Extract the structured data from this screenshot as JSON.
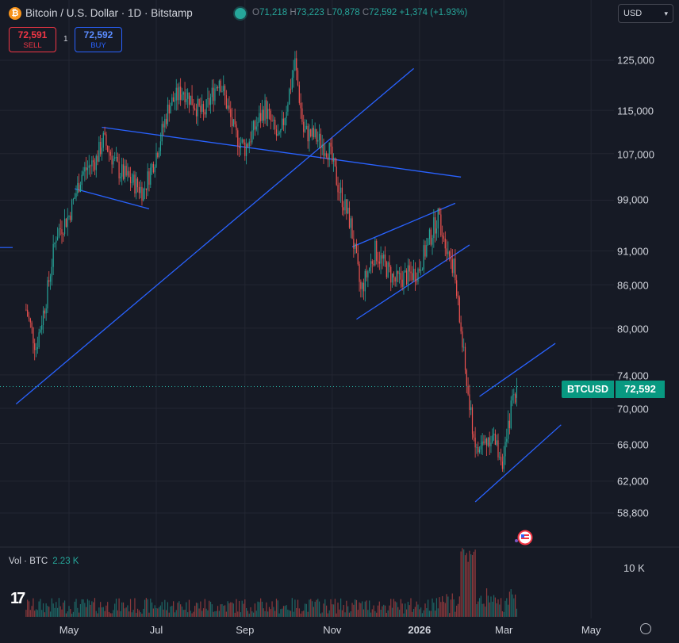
{
  "header": {
    "title": "Bitcoin / U.S. Dollar · 1D · Bitstamp",
    "ohlc": {
      "o_key": "O",
      "o": "71,218",
      "h_key": "H",
      "h": "73,223",
      "l_key": "L",
      "l": "70,878",
      "c_key": "C",
      "c": "72,592",
      "change": "+1,374 (+1.93%)"
    }
  },
  "trade": {
    "sell_price": "72,591",
    "sell_label": "SELL",
    "buy_price": "72,592",
    "buy_label": "BUY",
    "spread": "1"
  },
  "currency": {
    "value": "USD"
  },
  "price_axis": {
    "labels": [
      "125,000",
      "115,000",
      "107,000",
      "99,000",
      "91,000",
      "86,000",
      "80,000",
      "74,000",
      "70,000",
      "66,000",
      "62,000",
      "58,800"
    ]
  },
  "time_axis": {
    "labels": [
      "May",
      "Jul",
      "Sep",
      "Nov",
      "2026",
      "Mar",
      "May"
    ]
  },
  "last_price": {
    "symbol": "BTCUSD",
    "value": "72,592"
  },
  "volume": {
    "label": "Vol · BTC",
    "value": "2.23 K",
    "axis_label": "10 K"
  },
  "logo": {
    "text": "17"
  },
  "colors": {
    "up": "#26a69a",
    "down": "#ef5350",
    "trendline": "#2962ff",
    "background": "#161a25"
  },
  "chart_data": {
    "type": "candlestick",
    "symbol": "BTCUSD",
    "interval": "1D",
    "ylim": [
      57000,
      128000
    ],
    "log_scale": true,
    "close_path": [
      {
        "date": "2025-04-01",
        "close": 82500
      },
      {
        "date": "2025-04-08",
        "close": 77500
      },
      {
        "date": "2025-04-15",
        "close": 84000
      },
      {
        "date": "2025-04-22",
        "close": 93500
      },
      {
        "date": "2025-05-01",
        "close": 96500
      },
      {
        "date": "2025-05-10",
        "close": 103500
      },
      {
        "date": "2025-05-20",
        "close": 106000
      },
      {
        "date": "2025-05-25",
        "close": 109500
      },
      {
        "date": "2025-06-05",
        "close": 104000
      },
      {
        "date": "2025-06-22",
        "close": 100500
      },
      {
        "date": "2025-07-01",
        "close": 107000
      },
      {
        "date": "2025-07-10",
        "close": 116000
      },
      {
        "date": "2025-07-20",
        "close": 119000
      },
      {
        "date": "2025-08-03",
        "close": 114000
      },
      {
        "date": "2025-08-14",
        "close": 121500
      },
      {
        "date": "2025-08-25",
        "close": 110500
      },
      {
        "date": "2025-09-01",
        "close": 108000
      },
      {
        "date": "2025-09-15",
        "close": 115500
      },
      {
        "date": "2025-09-25",
        "close": 109000
      },
      {
        "date": "2025-10-06",
        "close": 124500
      },
      {
        "date": "2025-10-12",
        "close": 111000
      },
      {
        "date": "2025-10-20",
        "close": 110000
      },
      {
        "date": "2025-10-30",
        "close": 107500
      },
      {
        "date": "2025-11-05",
        "close": 101500
      },
      {
        "date": "2025-11-14",
        "close": 95000
      },
      {
        "date": "2025-11-21",
        "close": 85000
      },
      {
        "date": "2025-12-01",
        "close": 91000
      },
      {
        "date": "2025-12-15",
        "close": 86500
      },
      {
        "date": "2025-12-31",
        "close": 88000
      },
      {
        "date": "2026-01-14",
        "close": 96500
      },
      {
        "date": "2026-01-25",
        "close": 88500
      },
      {
        "date": "2026-02-05",
        "close": 70000
      },
      {
        "date": "2026-02-10",
        "close": 65000
      },
      {
        "date": "2026-02-20",
        "close": 67000
      },
      {
        "date": "2026-03-01",
        "close": 64000
      },
      {
        "date": "2026-03-06",
        "close": 70000
      },
      {
        "date": "2026-03-10",
        "close": 72592
      }
    ],
    "last": {
      "open": 71218,
      "high": 73223,
      "low": 70878,
      "close": 72592,
      "change": 1374,
      "change_pct": 1.93
    },
    "trendlines": [
      {
        "from": {
          "date": "2025-03-25",
          "price": 70500
        },
        "to": {
          "date": "2025-12-28",
          "price": 123300
        }
      },
      {
        "from": {
          "date": "2025-05-24",
          "price": 111800
        },
        "to": {
          "date": "2026-01-30",
          "price": 102900
        }
      },
      {
        "from": {
          "date": "2025-05-05",
          "price": 100900
        },
        "to": {
          "date": "2025-06-26",
          "price": 97600
        }
      },
      {
        "from": {
          "date": "2025-11-15",
          "price": 91600
        },
        "to": {
          "date": "2026-01-26",
          "price": 98500
        }
      },
      {
        "from": {
          "date": "2025-11-18",
          "price": 81200
        },
        "to": {
          "date": "2026-02-05",
          "price": 91900
        }
      },
      {
        "from": {
          "date": "2026-02-12",
          "price": 71400
        },
        "to": {
          "date": "2026-04-06",
          "price": 78000
        }
      },
      {
        "from": {
          "date": "2026-02-09",
          "price": 59900
        },
        "to": {
          "date": "2026-04-10",
          "price": 68100
        }
      }
    ]
  }
}
